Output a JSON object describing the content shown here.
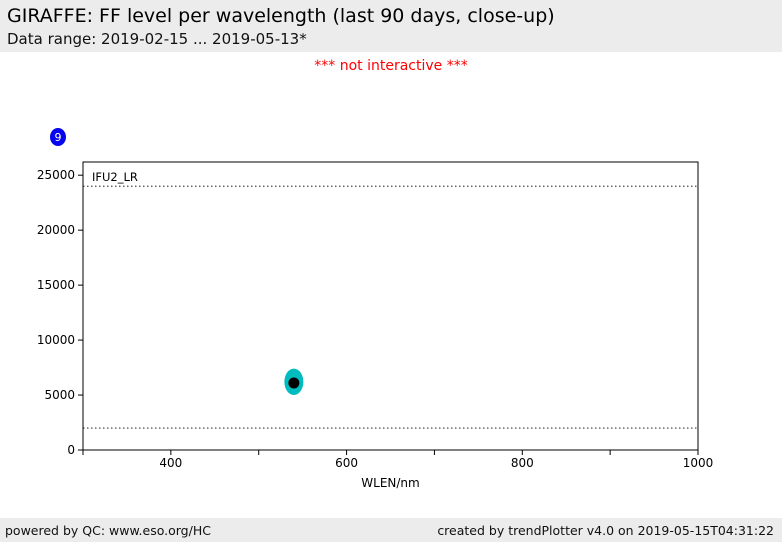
{
  "header": {
    "title": "GIRAFFE: FF level per wavelength (last 90 days, close-up)",
    "subtitle": "Data range: 2019-02-15 ... 2019-05-13*"
  },
  "notice": "*** not interactive ***",
  "badge": {
    "count": "9"
  },
  "chart_data": {
    "type": "scatter",
    "title": "GIRAFFE: FF level per wavelength (last 90 days, close-up)",
    "xlabel": "WLEN/nm",
    "ylabel": "",
    "xlim": [
      300,
      1000
    ],
    "ylim": [
      0,
      26200
    ],
    "x_tick_step_minor": 100,
    "x_ticks_labeled": [
      400,
      600,
      800,
      1000
    ],
    "y_ticks": [
      0,
      5000,
      10000,
      15000,
      20000,
      25000
    ],
    "grid": false,
    "legend_position": "none",
    "annotation_label": "IFU2_LR",
    "threshold_lines": [
      {
        "y": 24000,
        "style": "dotted"
      },
      {
        "y": 2000,
        "style": "dotted"
      }
    ],
    "series": [
      {
        "name": "IFU2_LR FF level points (overlapping cluster of 9)",
        "marker_color": "#00bcbe",
        "cluster": {
          "x": 540,
          "y_min": 5000,
          "y_max": 7400,
          "n_points": 9
        }
      },
      {
        "name": "median marker",
        "marker_color": "#000000",
        "points": [
          {
            "x": 540,
            "y": 6100
          }
        ]
      }
    ],
    "point_count_badge": 9
  },
  "footer": {
    "left": "powered by QC: www.eso.org/HC",
    "right": "created by trendPlotter v4.0 on 2019-05-15T04:31:22"
  },
  "colors": {
    "band_bg": "#ececec",
    "notice_red": "#ff0000",
    "badge_bg": "#0505ee",
    "badge_text": "#ffffff",
    "marker_cyan": "#00bcbe",
    "median_black": "#000000",
    "axis_black": "#000000"
  }
}
